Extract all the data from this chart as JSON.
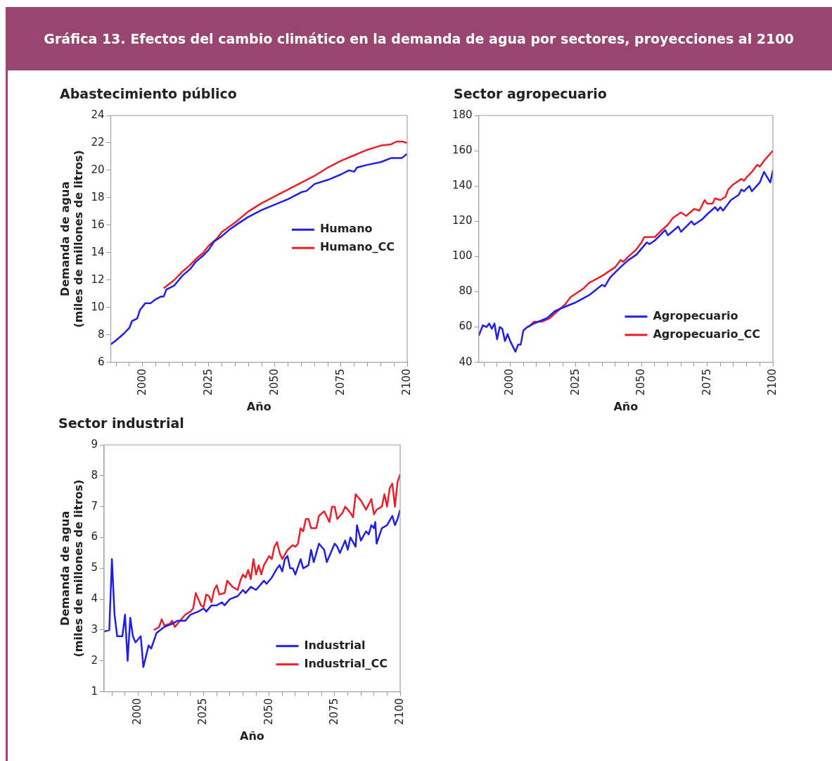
{
  "chart_data": [
    {
      "type": "line",
      "title": "Abastecimiento público",
      "annotations": [
        "Gráfica 13. Efectos del cambio climático en la demanda de agua por sectores, proyecciones al 2100"
      ],
      "xlabel": "Año",
      "ylabel": "Demanda de agua (miles de millones de litros)",
      "xlim": [
        1988,
        2100
      ],
      "ylim": [
        6,
        24
      ],
      "yticks": [
        6,
        8,
        10,
        12,
        14,
        16,
        18,
        20,
        22,
        24
      ],
      "xticks": [
        {
          "value": 1990,
          "label": null
        },
        {
          "value": 1995,
          "label": null
        },
        2000,
        {
          "value": 2005,
          "label": null
        },
        {
          "value": 2010,
          "label": null
        },
        {
          "value": 2015,
          "label": null
        },
        {
          "value": 2020,
          "label": null
        },
        2025,
        {
          "value": 2030,
          "label": null
        },
        {
          "value": 2035,
          "label": null
        },
        {
          "value": 2040,
          "label": null
        },
        {
          "value": 2045,
          "label": null
        },
        2050,
        {
          "value": 2055,
          "label": null
        },
        {
          "value": 2060,
          "label": null
        },
        {
          "value": 2065,
          "label": null
        },
        {
          "value": 2070,
          "label": null
        },
        2075,
        {
          "value": 2080,
          "label": null
        },
        {
          "value": 2085,
          "label": null
        },
        {
          "value": 2090,
          "label": null
        },
        {
          "value": 2095,
          "label": null
        },
        2100
      ],
      "legend": "right",
      "series": [
        {
          "name": "Humano",
          "color": "#1f1fe6",
          "x": [
            1988,
            1990,
            1993,
            1995,
            1996,
            1998,
            1999,
            2001,
            2003,
            2005,
            2007,
            2008,
            2009,
            2012,
            2015,
            2018,
            2020,
            2023,
            2025,
            2027,
            2030,
            2033,
            2036,
            2040,
            2045,
            2050,
            2055,
            2060,
            2062,
            2065,
            2070,
            2075,
            2078,
            2080,
            2081,
            2085,
            2090,
            2094,
            2098,
            2100
          ],
          "values": [
            7.3,
            7.6,
            8.1,
            8.5,
            9.0,
            9.2,
            9.8,
            10.3,
            10.3,
            10.6,
            10.8,
            10.8,
            11.3,
            11.6,
            12.3,
            12.8,
            13.3,
            13.8,
            14.2,
            14.8,
            15.2,
            15.7,
            16.1,
            16.6,
            17.1,
            17.5,
            17.9,
            18.4,
            18.5,
            19.0,
            19.3,
            19.7,
            20.0,
            19.9,
            20.2,
            20.4,
            20.6,
            20.9,
            20.9,
            21.2
          ]
        },
        {
          "name": "Humano_CC",
          "color": "#e8202a",
          "x": [
            2008,
            2012,
            2015,
            2018,
            2020,
            2023,
            2025,
            2028,
            2030,
            2035,
            2040,
            2045,
            2050,
            2055,
            2060,
            2065,
            2070,
            2075,
            2080,
            2085,
            2090,
            2094,
            2096,
            2098,
            2100
          ],
          "values": [
            11.4,
            12.0,
            12.6,
            13.1,
            13.5,
            14.0,
            14.5,
            15.0,
            15.5,
            16.2,
            17.0,
            17.6,
            18.1,
            18.6,
            19.1,
            19.6,
            20.2,
            20.7,
            21.1,
            21.5,
            21.8,
            21.9,
            22.1,
            22.1,
            22.0
          ]
        }
      ]
    },
    {
      "type": "line",
      "title": "Sector agropecuario",
      "xlabel": "Año",
      "xlim": [
        1988,
        2100
      ],
      "ylim": [
        40,
        180
      ],
      "yticks": [
        40,
        60,
        80,
        100,
        120,
        140,
        160,
        180
      ],
      "xticks": [
        {
          "value": 1990,
          "label": null
        },
        {
          "value": 1995,
          "label": null
        },
        2000,
        {
          "value": 2005,
          "label": null
        },
        {
          "value": 2010,
          "label": null
        },
        {
          "value": 2015,
          "label": null
        },
        {
          "value": 2020,
          "label": null
        },
        2025,
        {
          "value": 2030,
          "label": null
        },
        {
          "value": 2035,
          "label": null
        },
        {
          "value": 2040,
          "label": null
        },
        {
          "value": 2045,
          "label": null
        },
        2050,
        {
          "value": 2055,
          "label": null
        },
        {
          "value": 2060,
          "label": null
        },
        {
          "value": 2065,
          "label": null
        },
        {
          "value": 2070,
          "label": null
        },
        2075,
        {
          "value": 2080,
          "label": null
        },
        {
          "value": 2085,
          "label": null
        },
        {
          "value": 2090,
          "label": null
        },
        {
          "value": 2095,
          "label": null
        },
        2100
      ],
      "legend": "bottom right",
      "series": [
        {
          "name": "Agropecuario",
          "color": "#1f1fe6",
          "x": [
            1988,
            1989.6,
            1991,
            1992,
            1993,
            1994,
            1995,
            1996,
            1997,
            1998,
            1999,
            2000,
            2002,
            2003,
            2004,
            2005,
            2006.5,
            2009,
            2014,
            2017,
            2020,
            2025,
            2030,
            2035,
            2036,
            2038,
            2042,
            2045,
            2048,
            2052,
            2053,
            2055,
            2059,
            2060,
            2064,
            2065,
            2069,
            2070,
            2073,
            2075,
            2078,
            2079,
            2080,
            2081,
            2084,
            2087,
            2088,
            2089,
            2091,
            2092,
            2095,
            2096.6,
            2099,
            2100
          ],
          "values": [
            55,
            61,
            60,
            62,
            59,
            62,
            53,
            60,
            59,
            52,
            56,
            52,
            46,
            50,
            50,
            58,
            60,
            62,
            65,
            69,
            71,
            74,
            78,
            84,
            83,
            88,
            94,
            98,
            101,
            108,
            107,
            109,
            115,
            112,
            117,
            114,
            120,
            118,
            121,
            124,
            128,
            126,
            128,
            126,
            132,
            135,
            138,
            137,
            140,
            137,
            142,
            148,
            142,
            149
          ]
        },
        {
          "name": "Agropecuario_CC",
          "color": "#e8202a",
          "x": [
            2007,
            2009,
            2012,
            2015,
            2018,
            2021,
            2023,
            2026,
            2028,
            2030,
            2035,
            2038,
            2040,
            2042,
            2043,
            2045,
            2048,
            2050,
            2051,
            2055,
            2057,
            2060,
            2062,
            2065,
            2067,
            2070,
            2072,
            2074,
            2075,
            2077,
            2078,
            2080,
            2082,
            2083,
            2085,
            2088,
            2089,
            2090,
            2092,
            2094,
            2095,
            2097,
            2100
          ],
          "values": [
            60,
            63,
            63,
            65,
            69,
            73,
            77,
            80,
            82,
            85,
            89,
            92,
            94,
            98,
            97,
            100,
            104,
            108,
            111,
            111,
            114,
            118,
            122,
            125,
            123,
            127,
            126,
            132,
            130,
            130,
            133,
            132,
            134,
            138,
            141,
            144,
            143,
            145,
            148,
            152,
            151,
            155,
            160
          ]
        }
      ]
    },
    {
      "type": "line",
      "title": "Sector industrial",
      "xlabel": "Año",
      "ylabel": "Demanda de agua (miles de millones de litros)",
      "xlim": [
        1987,
        2100
      ],
      "ylim": [
        1,
        9
      ],
      "yticks": [
        1,
        2,
        3,
        4,
        5,
        6,
        7,
        8,
        9
      ],
      "xticks": [
        {
          "value": 1990,
          "label": null
        },
        {
          "value": 1995,
          "label": null
        },
        2000,
        {
          "value": 2005,
          "label": null
        },
        {
          "value": 2010,
          "label": null
        },
        {
          "value": 2015,
          "label": null
        },
        {
          "value": 2020,
          "label": null
        },
        2025,
        {
          "value": 2030,
          "label": null
        },
        {
          "value": 2035,
          "label": null
        },
        {
          "value": 2040,
          "label": null
        },
        {
          "value": 2045,
          "label": null
        },
        2050,
        {
          "value": 2055,
          "label": null
        },
        {
          "value": 2060,
          "label": null
        },
        {
          "value": 2065,
          "label": null
        },
        {
          "value": 2070,
          "label": null
        },
        2075,
        {
          "value": 2080,
          "label": null
        },
        {
          "value": 2085,
          "label": null
        },
        {
          "value": 2090,
          "label": null
        },
        {
          "value": 2095,
          "label": null
        },
        2100
      ],
      "legend": "bottom right",
      "series": [
        {
          "name": "Industrial",
          "color": "#1f1fe6",
          "x": [
            1987,
            1989,
            1990,
            1991,
            1992,
            1993,
            1994,
            1995,
            1996,
            1997,
            1998,
            1999,
            2001,
            2002,
            2004,
            2005,
            2007,
            2010,
            2013,
            2015,
            2018,
            2020,
            2023,
            2025,
            2026,
            2028,
            2030,
            2032,
            2033,
            2035,
            2038,
            2040,
            2041,
            2043,
            2045,
            2048,
            2049,
            2051,
            2053,
            2054,
            2055,
            2056,
            2057,
            2058,
            2059,
            2060,
            2062,
            2063,
            2065,
            2066,
            2067,
            2069,
            2071,
            2072,
            2075,
            2076,
            2077,
            2079,
            2080,
            2081,
            2083,
            2083.5,
            2085,
            2087,
            2088,
            2089,
            2090,
            2090.5,
            2091,
            2093,
            2095,
            2097,
            2098,
            2099,
            2100
          ],
          "values": [
            2.95,
            3.0,
            5.3,
            3.5,
            2.8,
            2.8,
            2.8,
            3.5,
            2.0,
            3.4,
            2.8,
            2.6,
            2.8,
            1.8,
            2.5,
            2.4,
            2.9,
            3.1,
            3.2,
            3.3,
            3.3,
            3.5,
            3.6,
            3.7,
            3.6,
            3.8,
            3.8,
            3.9,
            3.8,
            4.0,
            4.1,
            4.3,
            4.2,
            4.4,
            4.3,
            4.6,
            4.5,
            4.7,
            5.0,
            5.1,
            4.9,
            5.3,
            5.4,
            5.0,
            5.0,
            4.8,
            5.3,
            5.0,
            5.1,
            5.6,
            5.2,
            5.8,
            5.6,
            5.2,
            5.8,
            5.7,
            5.5,
            5.9,
            5.6,
            6.0,
            5.7,
            6.4,
            5.9,
            6.2,
            6.1,
            6.4,
            6.3,
            6.5,
            5.8,
            6.3,
            6.4,
            6.7,
            6.4,
            6.6,
            6.9
          ]
        },
        {
          "name": "Industrial_CC",
          "color": "#e8202a",
          "x": [
            2006,
            2008,
            2009,
            2010,
            2012,
            2013,
            2014,
            2016,
            2018,
            2020,
            2021,
            2022,
            2024,
            2025,
            2026,
            2027,
            2028,
            2029,
            2030,
            2031,
            2033,
            2034,
            2036,
            2038,
            2039,
            2040,
            2041,
            2042,
            2043,
            2044,
            2045,
            2046,
            2047,
            2048,
            2050,
            2051,
            2052,
            2053,
            2054,
            2055,
            2057,
            2059,
            2060,
            2061,
            2062,
            2063,
            2064,
            2065,
            2066,
            2068,
            2069,
            2071,
            2073,
            2074,
            2075,
            2076,
            2078,
            2079,
            2081,
            2082,
            2083,
            2085,
            2087,
            2089,
            2090,
            2091,
            2093,
            2094,
            2095,
            2096,
            2097,
            2098,
            2099,
            2100
          ],
          "values": [
            3.0,
            3.1,
            3.35,
            3.15,
            3.2,
            3.3,
            3.1,
            3.3,
            3.5,
            3.6,
            3.7,
            4.2,
            3.8,
            3.75,
            4.15,
            4.1,
            3.9,
            4.3,
            4.45,
            4.15,
            4.2,
            4.6,
            4.4,
            4.3,
            4.6,
            4.8,
            4.7,
            4.95,
            4.65,
            5.3,
            4.8,
            5.1,
            4.8,
            5.1,
            5.4,
            5.3,
            5.7,
            5.85,
            5.5,
            5.3,
            5.6,
            5.75,
            5.7,
            5.8,
            6.3,
            6.2,
            6.6,
            6.6,
            6.3,
            6.3,
            6.7,
            6.85,
            6.5,
            7.0,
            7.0,
            6.6,
            6.8,
            7.0,
            6.8,
            6.65,
            7.4,
            7.2,
            6.9,
            7.25,
            6.75,
            6.9,
            7.0,
            7.4,
            7.0,
            7.6,
            7.75,
            7.0,
            7.8,
            8.05
          ]
        }
      ]
    }
  ]
}
